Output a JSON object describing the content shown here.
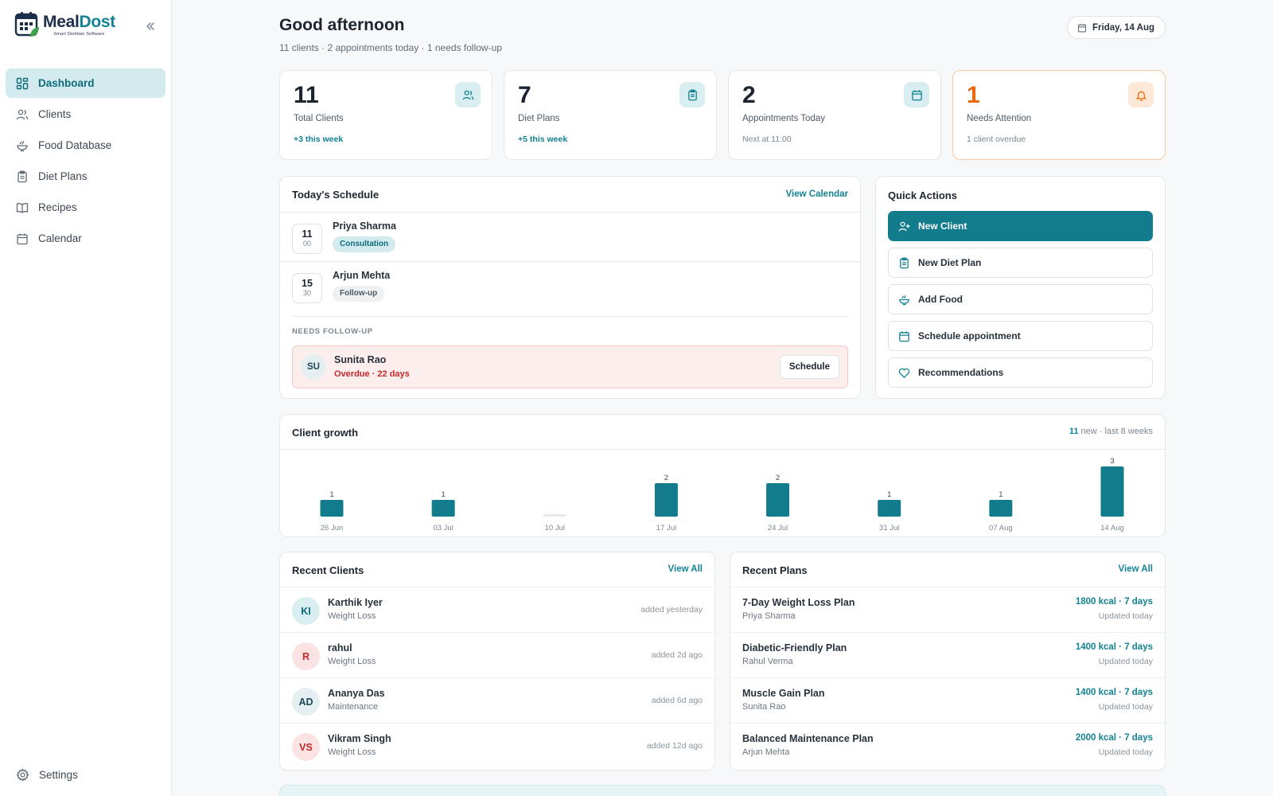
{
  "app": {
    "name_a": "Meal",
    "name_b": "Dost",
    "tagline": "Smart Dietitian Software"
  },
  "sidebar": {
    "items": [
      {
        "label": "Dashboard",
        "icon": "grid-icon",
        "active": true
      },
      {
        "label": "Clients",
        "icon": "users-icon"
      },
      {
        "label": "Food Database",
        "icon": "bowl-icon"
      },
      {
        "label": "Diet Plans",
        "icon": "clipboard-icon"
      },
      {
        "label": "Recipes",
        "icon": "book-icon"
      },
      {
        "label": "Calendar",
        "icon": "calendar-icon"
      }
    ],
    "settings_label": "Settings"
  },
  "header": {
    "greeting": "Good afternoon",
    "summary": "11 clients · 2 appointments today · 1 needs follow-up",
    "date": "Friday, 14 Aug"
  },
  "stats": [
    {
      "value": "11",
      "label": "Total Clients",
      "sub": "+3 this week",
      "icon": "users-icon"
    },
    {
      "value": "7",
      "label": "Diet Plans",
      "sub": "+5 this week",
      "icon": "clipboard-icon"
    },
    {
      "value": "2",
      "label": "Appointments Today",
      "sub": "Next at 11:00",
      "icon": "calendar-icon"
    },
    {
      "value": "1",
      "label": "Needs Attention",
      "sub": "1 client overdue",
      "icon": "bell-icon"
    }
  ],
  "schedule": {
    "title": "Today's Schedule",
    "link": "View Calendar",
    "items": [
      {
        "hour": "11",
        "minute": "00",
        "name": "Priya Sharma",
        "tag": "Consultation"
      },
      {
        "hour": "15",
        "minute": "30",
        "name": "Arjun Mehta",
        "tag": "Follow-up"
      }
    ],
    "followup_label": "NEEDS FOLLOW-UP",
    "followup": {
      "initials": "SU",
      "name": "Sunita Rao",
      "status": "Overdue · 22 days",
      "button": "Schedule"
    }
  },
  "quick_actions": {
    "title": "Quick Actions",
    "items": [
      {
        "label": "New Client",
        "icon": "user-plus-icon"
      },
      {
        "label": "New Diet Plan",
        "icon": "clipboard-icon"
      },
      {
        "label": "Add Food",
        "icon": "bowl-icon"
      },
      {
        "label": "Schedule appointment",
        "icon": "calendar-icon"
      },
      {
        "label": "Recommendations",
        "icon": "heart-icon"
      }
    ]
  },
  "growth": {
    "title": "Client growth",
    "meta_count": "11",
    "meta_text": " new · last 8 weeks"
  },
  "chart_data": {
    "type": "bar",
    "categories": [
      "26 Jun",
      "03 Jul",
      "10 Jul",
      "17 Jul",
      "24 Jul",
      "31 Jul",
      "07 Aug",
      "14 Aug"
    ],
    "values": [
      1,
      1,
      0,
      2,
      2,
      1,
      1,
      3
    ],
    "ylim": [
      0,
      3
    ],
    "grid": false,
    "color": "#127c8c"
  },
  "recent_clients": {
    "title": "Recent Clients",
    "link": "View All",
    "items": [
      {
        "initials": "KI",
        "name": "Karthik Iyer",
        "goal": "Weight Loss",
        "added": "added yesterday",
        "tone": "teal"
      },
      {
        "initials": "R",
        "name": "rahul",
        "goal": "Weight Loss",
        "added": "added 2d ago",
        "tone": "red"
      },
      {
        "initials": "AD",
        "name": "Ananya Das",
        "goal": "Maintenance",
        "added": "added 6d ago",
        "tone": "grey"
      },
      {
        "initials": "VS",
        "name": "Vikram Singh",
        "goal": "Weight Loss",
        "added": "added 12d ago",
        "tone": "red"
      }
    ]
  },
  "recent_plans": {
    "title": "Recent Plans",
    "link": "View All",
    "items": [
      {
        "name": "7-Day Weight Loss Plan",
        "client": "Priya Sharma",
        "kcal": "1800 kcal · 7 days",
        "updated": "Updated today"
      },
      {
        "name": "Diabetic-Friendly Plan",
        "client": "Rahul Verma",
        "kcal": "1400 kcal · 7 days",
        "updated": "Updated today"
      },
      {
        "name": "Muscle Gain Plan",
        "client": "Sunita Rao",
        "kcal": "1400 kcal · 7 days",
        "updated": "Updated today"
      },
      {
        "name": "Balanced Maintenance Plan",
        "client": "Arjun Mehta",
        "kcal": "2000 kcal · 7 days",
        "updated": "Updated today"
      }
    ]
  },
  "colors": {
    "accent": "#127c8c",
    "accent_light": "#d3ebef",
    "warning": "#ea6a0c",
    "danger": "#c62828"
  }
}
